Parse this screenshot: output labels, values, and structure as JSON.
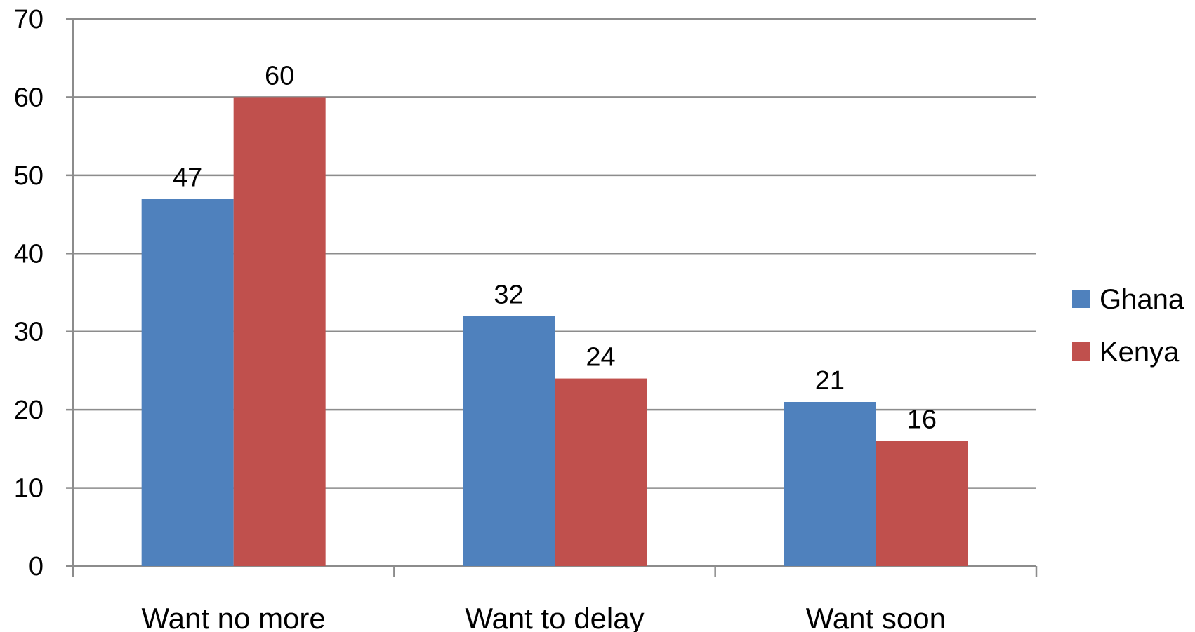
{
  "chart_data": {
    "type": "bar",
    "title": "",
    "xlabel": "",
    "ylabel": "",
    "categories": [
      "Want no more",
      "Want to delay",
      "Want soon"
    ],
    "series": [
      {
        "name": "Ghana",
        "color": "#4F81BD",
        "values": [
          47,
          32,
          21
        ]
      },
      {
        "name": "Kenya",
        "color": "#C0504D",
        "values": [
          60,
          24,
          16
        ]
      }
    ],
    "ylim": [
      0,
      70
    ],
    "yticks": [
      0,
      10,
      20,
      30,
      40,
      50,
      60,
      70
    ],
    "grid": true,
    "gridline_color": "#8C8C8C",
    "legend_position": "right",
    "data_labels": true
  }
}
